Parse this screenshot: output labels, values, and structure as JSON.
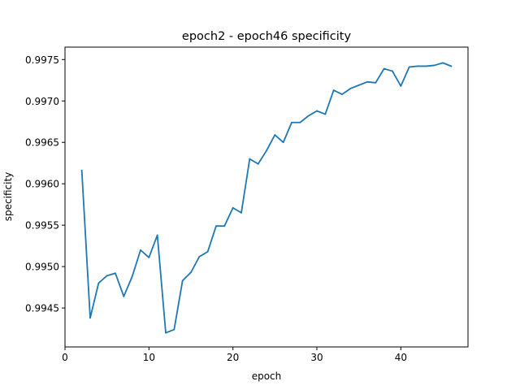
{
  "chart_data": {
    "type": "line",
    "title": "epoch2 - epoch46 specificity",
    "xlabel": "epoch",
    "ylabel": "specificity",
    "xlim": [
      0,
      48
    ],
    "ylim": [
      0.99403,
      0.99765
    ],
    "x_ticks": [
      0,
      10,
      20,
      30,
      40
    ],
    "x_tick_labels": [
      "0",
      "10",
      "20",
      "30",
      "40"
    ],
    "y_ticks": [
      0.9945,
      0.995,
      0.9955,
      0.996,
      0.9965,
      0.997,
      0.9975
    ],
    "y_tick_labels": [
      "0.9945",
      "0.9950",
      "0.9955",
      "0.9960",
      "0.9965",
      "0.9970",
      "0.9975"
    ],
    "grid": false,
    "legend": "none",
    "series": [
      {
        "color": "#1f77b4",
        "x": [
          2,
          3,
          4,
          5,
          6,
          7,
          8,
          9,
          10,
          11,
          12,
          13,
          14,
          15,
          16,
          17,
          18,
          19,
          20,
          21,
          22,
          23,
          24,
          25,
          26,
          27,
          28,
          29,
          30,
          31,
          32,
          33,
          34,
          35,
          36,
          37,
          38,
          39,
          40,
          41,
          42,
          43,
          44,
          45,
          46
        ],
        "values": [
          0.99616,
          0.99438,
          0.9948,
          0.99489,
          0.99492,
          0.99464,
          0.99488,
          0.9952,
          0.99511,
          0.99538,
          0.9942,
          0.99424,
          0.99483,
          0.99493,
          0.99512,
          0.99518,
          0.99549,
          0.99549,
          0.99571,
          0.99565,
          0.9963,
          0.99624,
          0.9964,
          0.99659,
          0.9965,
          0.99674,
          0.99674,
          0.99682,
          0.99688,
          0.99684,
          0.99713,
          0.99708,
          0.99715,
          0.99719,
          0.99723,
          0.99722,
          0.99739,
          0.99736,
          0.99718,
          0.99741,
          0.99742,
          0.99742,
          0.99743,
          0.99746,
          0.99742
        ]
      }
    ]
  }
}
